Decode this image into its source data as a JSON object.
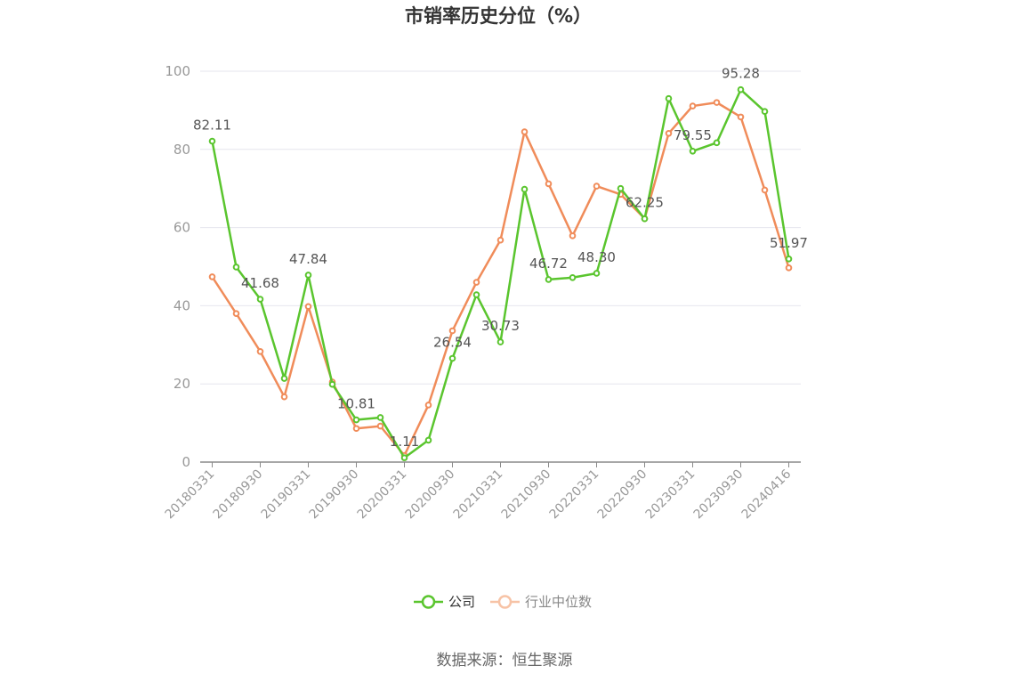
{
  "chart_data": {
    "type": "line",
    "title": "市销率历史分位（%）",
    "source": "数据来源：恒生聚源",
    "ylim": [
      0,
      100
    ],
    "yticks": [
      0,
      20,
      40,
      60,
      80,
      100
    ],
    "xtick_labels": [
      "20180331",
      "20180930",
      "20190331",
      "20190930",
      "20200331",
      "20200930",
      "20210331",
      "20210930",
      "20220331",
      "20220930",
      "20230331",
      "20230930",
      "20240416"
    ],
    "grid": true,
    "legend_position": "bottom",
    "x_count": 25,
    "series": [
      {
        "name": "公司",
        "color": "#5ac52e",
        "values": [
          82.11,
          49.9,
          41.68,
          21.4,
          47.84,
          19.9,
          10.81,
          11.4,
          1.11,
          5.6,
          26.54,
          42.8,
          30.73,
          69.8,
          46.72,
          47.2,
          48.3,
          70.0,
          62.25,
          93.0,
          79.55,
          81.7,
          95.28,
          89.7,
          51.97
        ],
        "labels": {
          "0": "82.11",
          "2": "41.68",
          "4": "47.84",
          "6": "10.81",
          "8": "1.11",
          "10": "26.54",
          "12": "30.73",
          "14": "46.72",
          "16": "48.30",
          "18": "62.25",
          "20": "79.55",
          "22": "95.28",
          "24": "51.97"
        }
      },
      {
        "name": "行业中位数",
        "color": "#f08c5a",
        "values": [
          47.4,
          38.0,
          28.3,
          16.7,
          39.8,
          20.5,
          8.6,
          9.2,
          1.7,
          14.6,
          33.6,
          46.0,
          56.8,
          84.5,
          71.2,
          57.9,
          70.6,
          68.5,
          62.3,
          84.1,
          91.1,
          92.0,
          88.3,
          69.6,
          49.7
        ]
      }
    ]
  }
}
